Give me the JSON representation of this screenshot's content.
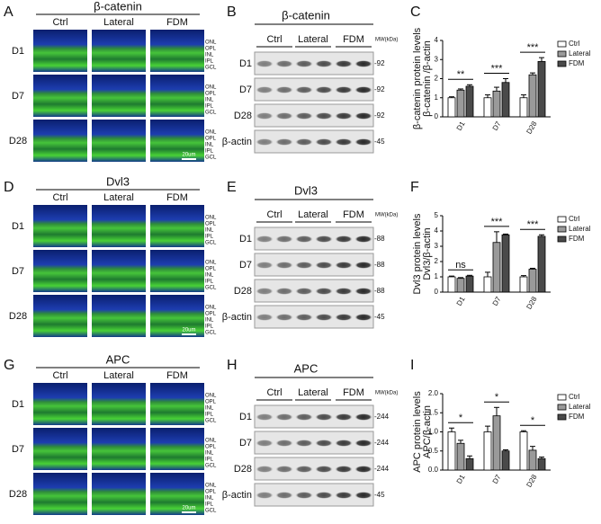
{
  "panels": [
    {
      "label": "A",
      "title": "β-catenin",
      "columns": [
        "Ctrl",
        "Lateral",
        "FDM"
      ],
      "rows": [
        "D1",
        "D7",
        "D28"
      ],
      "layers": [
        "ONL",
        "OPL",
        "INL",
        "IPL",
        "GCL"
      ],
      "scale": "20um"
    },
    {
      "label": "B",
      "title": "β-catenin",
      "groups": [
        "Ctrl",
        "Lateral",
        "FDM"
      ],
      "mw": "MW(kDa)",
      "rows": [
        "D1",
        "D7",
        "D28",
        "β-actin"
      ],
      "markers": [
        "-92",
        "-92",
        "-92",
        "-45"
      ]
    },
    {
      "label": "D",
      "title": "Dvl3",
      "columns": [
        "Ctrl",
        "Lateral",
        "FDM"
      ],
      "rows": [
        "D1",
        "D7",
        "D28"
      ],
      "layers": [
        "ONL",
        "OPL",
        "INL",
        "IPL",
        "GCL"
      ],
      "scale": "20um"
    },
    {
      "label": "E",
      "title": "Dvl3",
      "groups": [
        "Ctrl",
        "Lateral",
        "FDM"
      ],
      "mw": "MW(kDa)",
      "rows": [
        "D1",
        "D7",
        "D28",
        "β-actin"
      ],
      "markers": [
        "-88",
        "-88",
        "-88",
        "-45"
      ]
    },
    {
      "label": "G",
      "title": "APC",
      "columns": [
        "Ctrl",
        "Lateral",
        "FDM"
      ],
      "rows": [
        "D1",
        "D7",
        "D28"
      ],
      "layers": [
        "ONL",
        "OPL",
        "INL",
        "IPL",
        "GCL"
      ],
      "scale": "20um"
    },
    {
      "label": "H",
      "title": "APC",
      "groups": [
        "Ctrl",
        "Lateral",
        "FDM"
      ],
      "mw": "MW(kDa)",
      "rows": [
        "D1",
        "D7",
        "D28",
        "β-actin"
      ],
      "markers": [
        "-244",
        "-244",
        "-244",
        "-45"
      ]
    }
  ],
  "chart_data": [
    {
      "type": "bar",
      "label": "C",
      "ylabel": [
        "β-catenin protein levels",
        "β-catenin /β-actin"
      ],
      "categories": [
        "D1",
        "D7",
        "D28"
      ],
      "series": [
        {
          "name": "Ctrl",
          "color": "#ffffff",
          "values": [
            1,
            1,
            1
          ],
          "errors": [
            0.05,
            0.15,
            0.15
          ]
        },
        {
          "name": "Lateral",
          "color": "#9a9a9a",
          "values": [
            1.4,
            1.35,
            2.2
          ],
          "errors": [
            0.06,
            0.2,
            0.1
          ]
        },
        {
          "name": "FDM",
          "color": "#4a4a4a",
          "values": [
            1.6,
            1.8,
            2.9
          ],
          "errors": [
            0.08,
            0.2,
            0.2
          ]
        }
      ],
      "ylim": [
        0,
        4
      ],
      "yticks": [
        0,
        1,
        2,
        3,
        4
      ],
      "annotations": [
        "**",
        "***",
        "***"
      ]
    },
    {
      "type": "bar",
      "label": "F",
      "ylabel": [
        "Dvl3 protein levels",
        "Dvl3/β-actin"
      ],
      "categories": [
        "D1",
        "D7",
        "D28"
      ],
      "series": [
        {
          "name": "Ctrl",
          "color": "#ffffff",
          "values": [
            1,
            1,
            1
          ],
          "errors": [
            0.05,
            0.3,
            0.08
          ]
        },
        {
          "name": "Lateral",
          "color": "#9a9a9a",
          "values": [
            0.9,
            3.25,
            1.5
          ],
          "errors": [
            0.05,
            0.7,
            0.06
          ]
        },
        {
          "name": "FDM",
          "color": "#4a4a4a",
          "values": [
            1.05,
            3.75,
            3.65
          ],
          "errors": [
            0.05,
            0.05,
            0.1
          ]
        }
      ],
      "ylim": [
        0,
        5
      ],
      "yticks": [
        0,
        1,
        2,
        3,
        4,
        5
      ],
      "annotations": [
        "ns",
        "***",
        "***"
      ]
    },
    {
      "type": "bar",
      "label": "I",
      "ylabel": [
        "APC protein levels",
        "APC/β-actin"
      ],
      "categories": [
        "D1",
        "D7",
        "D28"
      ],
      "series": [
        {
          "name": "Ctrl",
          "color": "#ffffff",
          "values": [
            1.0,
            1.0,
            1.0
          ],
          "errors": [
            0.1,
            0.15,
            0.03
          ]
        },
        {
          "name": "Lateral",
          "color": "#9a9a9a",
          "values": [
            0.7,
            1.42,
            0.52
          ],
          "errors": [
            0.08,
            0.22,
            0.1
          ]
        },
        {
          "name": "FDM",
          "color": "#4a4a4a",
          "values": [
            0.3,
            0.5,
            0.3
          ],
          "errors": [
            0.07,
            0.03,
            0.04
          ]
        }
      ],
      "ylim": [
        0,
        2
      ],
      "yticks": [
        {
          "value": 0,
          "label": "0.0"
        },
        {
          "value": 0.5,
          "label": "0.5"
        },
        {
          "value": 1,
          "label": "1.0"
        },
        {
          "value": 1.5,
          "label": "1.5"
        },
        {
          "value": 2,
          "label": "2.0"
        }
      ],
      "annotations": [
        "*",
        "*",
        "*"
      ]
    }
  ]
}
